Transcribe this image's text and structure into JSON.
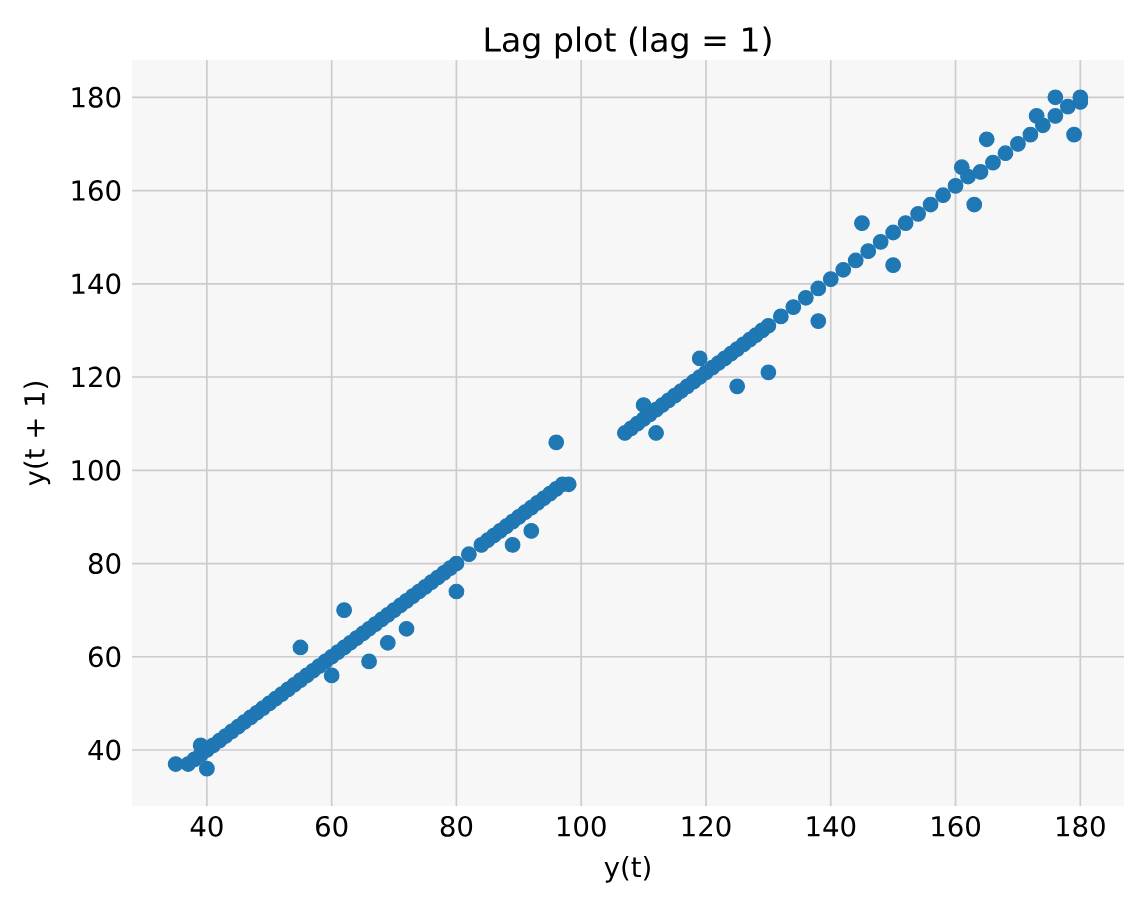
{
  "chart_data": {
    "type": "scatter",
    "title": "Lag plot (lag = 1)",
    "xlabel": "y(t)",
    "ylabel": "y(t + 1)",
    "x": [
      35,
      37,
      38,
      39,
      40,
      41,
      42,
      43,
      44,
      45,
      46,
      47,
      48,
      49,
      50,
      51,
      52,
      53,
      54,
      55,
      56,
      57,
      58,
      59,
      60,
      61,
      62,
      63,
      64,
      65,
      66,
      67,
      68,
      69,
      70,
      71,
      72,
      73,
      74,
      75,
      76,
      77,
      78,
      79,
      80,
      82,
      84,
      85,
      86,
      87,
      88,
      89,
      90,
      91,
      92,
      93,
      94,
      95,
      96,
      97,
      98,
      40,
      39,
      55,
      62,
      60,
      66,
      69,
      89,
      96,
      92,
      80,
      72,
      107,
      108,
      109,
      110,
      111,
      112,
      113,
      114,
      115,
      116,
      117,
      118,
      119,
      120,
      121,
      122,
      123,
      124,
      125,
      126,
      127,
      128,
      129,
      130,
      132,
      134,
      136,
      138,
      140,
      142,
      144,
      146,
      148,
      150,
      152,
      154,
      156,
      158,
      160,
      162,
      164,
      166,
      168,
      170,
      172,
      174,
      176,
      178,
      180,
      130,
      119,
      125,
      150,
      161,
      163,
      165,
      176,
      179,
      180,
      173,
      110,
      112,
      138,
      145
    ],
    "values": [
      37,
      37,
      38,
      39,
      40,
      41,
      42,
      43,
      44,
      45,
      46,
      47,
      48,
      49,
      50,
      51,
      52,
      53,
      54,
      55,
      56,
      57,
      58,
      59,
      60,
      61,
      62,
      63,
      64,
      65,
      66,
      67,
      68,
      69,
      70,
      71,
      72,
      73,
      74,
      75,
      76,
      77,
      78,
      79,
      80,
      82,
      84,
      85,
      86,
      87,
      88,
      89,
      90,
      91,
      92,
      93,
      94,
      95,
      96,
      97,
      97,
      36,
      41,
      62,
      70,
      56,
      59,
      63,
      84,
      106,
      87,
      74,
      66,
      108,
      109,
      110,
      111,
      112,
      113,
      114,
      115,
      116,
      117,
      118,
      119,
      120,
      121,
      122,
      123,
      124,
      125,
      126,
      127,
      128,
      129,
      130,
      131,
      133,
      135,
      137,
      139,
      141,
      143,
      145,
      147,
      149,
      151,
      153,
      155,
      157,
      159,
      161,
      163,
      164,
      166,
      168,
      170,
      172,
      174,
      176,
      178,
      179,
      121,
      124,
      118,
      144,
      165,
      157,
      171,
      180,
      172,
      180,
      176,
      114,
      108,
      132,
      153
    ],
    "color": "#1f77b4",
    "marker": "circle",
    "grid": true,
    "xlim": [
      28,
      187
    ],
    "ylim": [
      28,
      188
    ],
    "xticks": [
      40,
      60,
      80,
      100,
      120,
      140,
      160,
      180
    ],
    "yticks": [
      40,
      60,
      80,
      100,
      120,
      140,
      160,
      180
    ]
  }
}
